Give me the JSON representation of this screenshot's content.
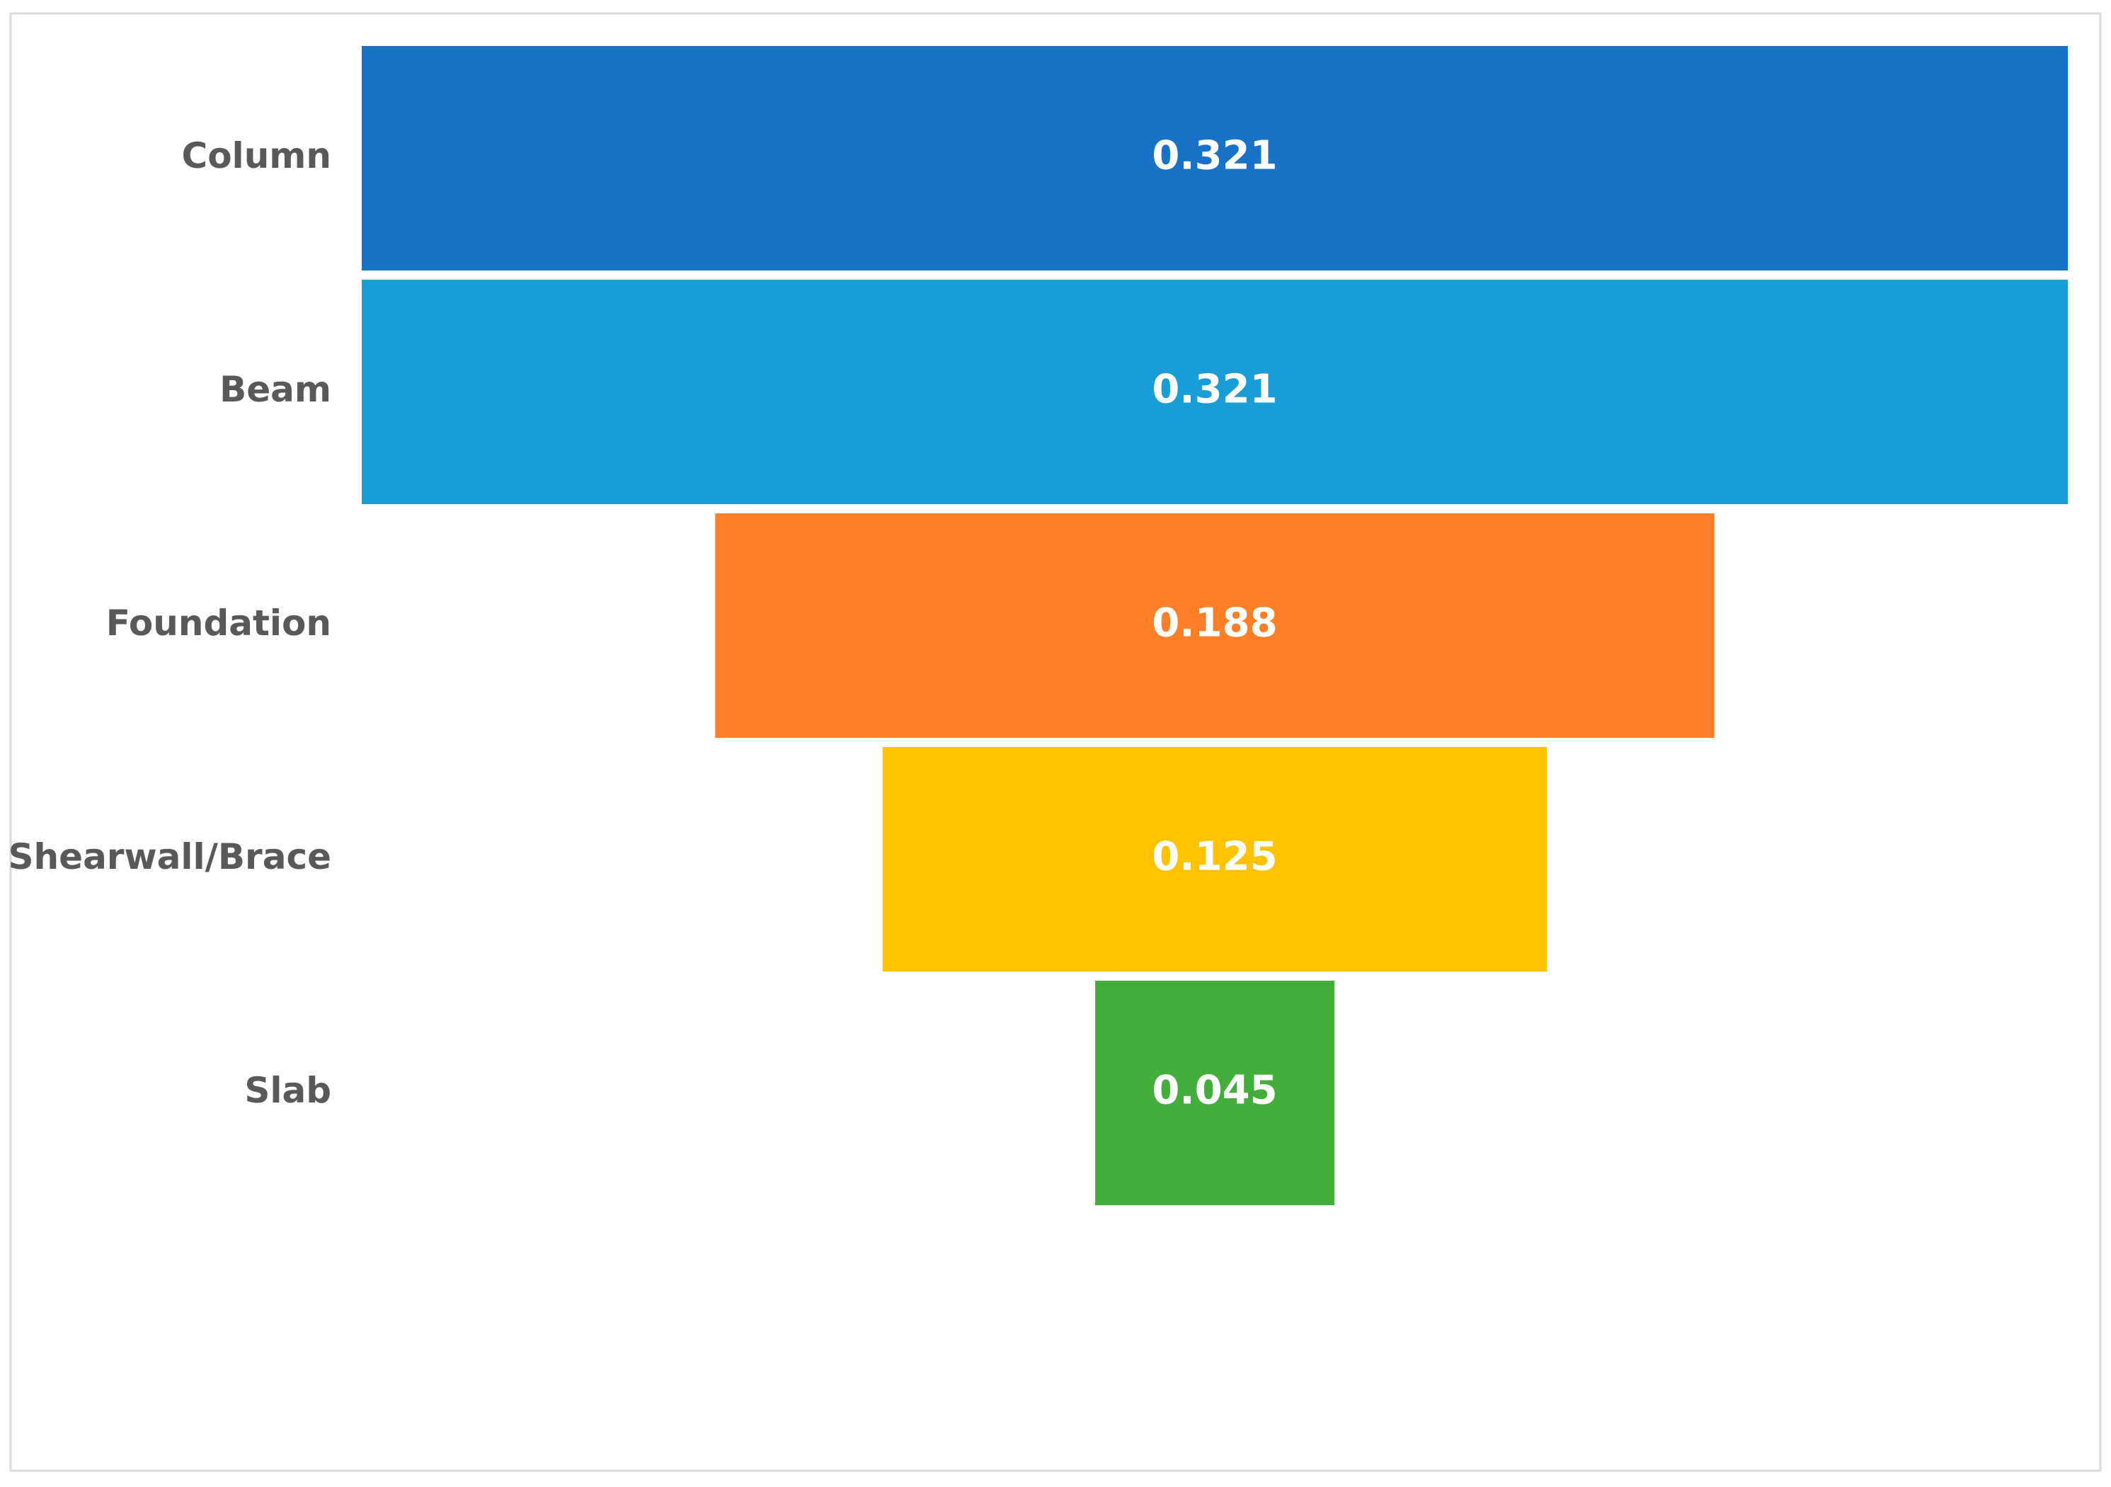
{
  "chart_data": {
    "type": "funnel",
    "categories": [
      "Column",
      "Beam",
      "Foundation",
      "Shearwall/Brace",
      "Slab"
    ],
    "values": [
      0.321,
      0.321,
      0.188,
      0.125,
      0.045
    ],
    "colors": [
      "#1772c8",
      "#1a9cd7",
      "#fe7f27",
      "#fec200",
      "#44ae3d"
    ]
  }
}
